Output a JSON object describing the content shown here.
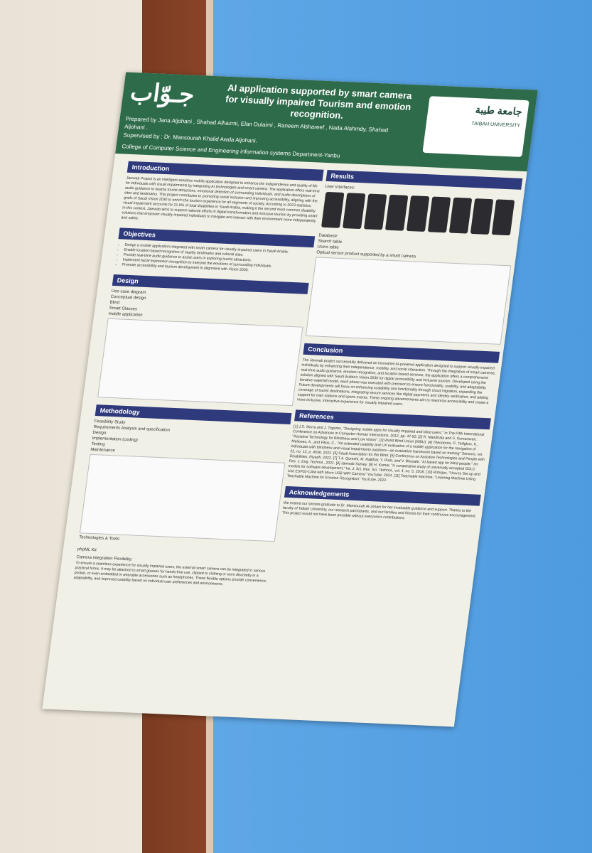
{
  "poster": {
    "logo": "جـوّاب",
    "title": "AI application supported by smart camera for visually impaired Tourism and emotion recognition.",
    "prepared_by": "Prepared by Jana Aljohani , Shahad Alhazmi, Elan Dulaimi , Raneem Alshareef , Nada Alahmdy, Shahad Aljohani .",
    "supervised_by": "Supervised by : Dr. Mansourah Khalid Awda Aljohani.",
    "college": "College of Computer Science and Engineering information systems Department-Yanbu",
    "university": "جامعة طيبة",
    "university_en": "TAIBAH UNIVERSITY",
    "left_sections": [
      {
        "title": "Introduction",
        "text": "Jawwab Project is an intelligent assistive mobile application designed to enhance the independence and quality of life for individuals with visual impairments by integrating AI technologies and smart camera. The application offers real-time audio guidance to nearby tourist attractions, emotional detection of surrounding individuals, and audio descriptions of sites and landmarks. This project contributes to promoting social inclusion and improving accessibility, aligning with the goals of Saudi Vision 2030 to enrich the tourism experience for all segments of society. According to 2023 statistics, visual impairment accounts for 21.8% of total disabilities in Saudi Arabia, making it the second most common disability. In this context, Jawwab aims to support national efforts in digital transformation and inclusive tourism by providing smart solutions that empower visually impaired individuals to navigate and interact with their environment more independently and safely."
      },
      {
        "title": "Objectives",
        "items": [
          "Design a mobile application integrated with smart camera for visually impaired users in Saudi Arabia.",
          "Enable location-based recognition of nearby landmarks and cultural sites.",
          "Provide real-time audio guidance to assist users in exploring tourist attractions.",
          "Implement facial expression recognition to interpret the emotions of surrounding individuals.",
          "Promote accessibility and tourism development in alignment with Vision 2030."
        ]
      },
      {
        "title": "Design",
        "labels": [
          "Use-case diagram",
          "Conceptual design",
          "Blind",
          "Smart Glasses",
          "mobile application"
        ]
      },
      {
        "title": "Methodology",
        "labels": [
          "Feasibility Study",
          "Requirements Analysis and specification",
          "Design",
          "Implementation (coding)",
          "Testing",
          "Maintenance"
        ],
        "tools_title": "Technologies & Tools:",
        "tools": [
          "php",
          "ML Kit"
        ],
        "camera_title": "Camera integration Flexibility:",
        "camera_text": "To ensure a seamless experience for visually impaired users, the external smart camera can be integrated in various practical forms. It may be attached to smart glasses for hands-free use, clipped to clothing or worn discreetly in a pocket, or even embedded in wearable accessories such as headphones. These flexible options provide convenience, adaptability, and improved usability based on individual user preferences and environments."
      }
    ],
    "right_sections": [
      {
        "title": "Results",
        "labels": [
          "User interfaces:",
          "Database:",
          "Search table",
          "Users table",
          "Optical sensor product supported by a smart camera"
        ]
      },
      {
        "title": "Conclusion",
        "text": "The Jawwab project successfully delivered an innovative AI-powered application designed to support visually impaired individuals by enhancing their independence, mobility, and social interaction. Through the integration of smart cameras, real-time audio guidance, emotion recognition, and location-based services, the application offers a comprehensive solution aligned with Saudi Arabia's Vision 2030 for digital accessibility and inclusive tourism. Developed using the iterative waterfall model, each phase was executed with precision to ensure functionality, usability, and adaptability. Future developments will focus on enhancing scalability and functionality through cloud migration, expanding the coverage of tourist destinations, integrating secure services like digital payments and identity verification, and adding support for train stations and sports events. These ongoing advancements aim to maximize accessibility and create a more inclusive, interactive experience for visually impaired users."
      },
      {
        "title": "References",
        "text": "[1] J.S. Sierra and J. Togores, \"Designing mobile apps for visually impaired and blind users,\" in The Fifth International Conference on Advances in Computer-Human Interactions, 2012, pp. 47-52. [2] R. Mandhala and S. Kumaravan, \"Assistive Technology for Blindness and Low Vision\". [3] World Blind Union (WBU). [4] Theodorou, P., Tsiligkos, K., Meliones, A., and Filios, C., \"An extended usability and UX evaluation of a mobile application for the navigation of individuals with blindness and visual impairments outdoors—an evaluation framework based on training\" Sensors, vol. 22, no. 12, p. 4538, 2022. [5] Saudi Association for the Blind. [6] Conference on Assistive Technologies and People with Disabilities, Riyadh, 2022. [7] T.A. Qureshi, M. Rajbhar, Y. Pisal, and V. Bhosale, \"AI based app for blind people,\" Int. Res. J. Eng. Technol., 2021. [8] Jawwab Survey. [9] H. Kumar, \"A comparative study of universally accepted SDLC models for software development,\" Int. J. Sci. Res. Sci. Technol., vol. 4, no. 5, 2018. [10] Robojax, \"How to Set up and Use ESP32-CAM with Micro USB WiFi Camera\" YouTube, 2024. [11] Teachable Machine, \"Learning Machine Using Teachable Machine for Emotion Recognition\" YouTube, 2022."
      },
      {
        "title": "Acknowledgements",
        "text": "We extend our sincere gratitude to Dr. Mansourah Al-Johani for her invaluable guidance and support. Thanks to the faculty of Taibah University, our research participants, and our families and friends for their continuous encouragement. This project would not have been possible without everyone's contributions."
      }
    ]
  }
}
